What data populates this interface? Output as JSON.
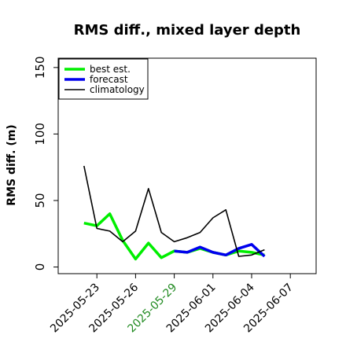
{
  "chart_data": {
    "type": "line",
    "title": "RMS diff., mixed layer depth",
    "xlabel": "",
    "ylabel": "RMS diff. (m)",
    "xlim": [
      "2025-05-20",
      "2025-06-09"
    ],
    "ylim": [
      -5,
      157
    ],
    "y_ticks": [
      0,
      50,
      100,
      150
    ],
    "x_ticks": [
      "2025-05-23",
      "2025-05-26",
      "2025-05-29",
      "2025-06-01",
      "2025-06-04",
      "2025-06-07"
    ],
    "highlight_tick": "2025-05-29",
    "highlight_color": "#228b22",
    "legend_position": "top-left",
    "grid": false,
    "series": [
      {
        "name": "best est.",
        "color": "#00ee00",
        "x": [
          "2025-05-22",
          "2025-05-23",
          "2025-05-24",
          "2025-05-25",
          "2025-05-26",
          "2025-05-27",
          "2025-05-28",
          "2025-05-29",
          "2025-05-30",
          "2025-05-31",
          "2025-06-01",
          "2025-06-02",
          "2025-06-03",
          "2025-06-04",
          "2025-06-05"
        ],
        "values": [
          33,
          31,
          40,
          20,
          6,
          18,
          7,
          12,
          11,
          14,
          11,
          9,
          12,
          11,
          9
        ]
      },
      {
        "name": "forecast",
        "color": "#0000ee",
        "x": [
          "2025-05-29",
          "2025-05-30",
          "2025-05-31",
          "2025-06-01",
          "2025-06-02",
          "2025-06-03",
          "2025-06-04",
          "2025-06-05"
        ],
        "values": [
          12,
          11,
          15,
          11,
          9,
          14,
          17,
          8
        ]
      },
      {
        "name": "climatology",
        "color": "#000000",
        "x": [
          "2025-05-22",
          "2025-05-23",
          "2025-05-24",
          "2025-05-25",
          "2025-05-26",
          "2025-05-27",
          "2025-05-28",
          "2025-05-29",
          "2025-05-30",
          "2025-05-31",
          "2025-06-01",
          "2025-06-02",
          "2025-06-03",
          "2025-06-04",
          "2025-06-05"
        ],
        "values": [
          76,
          29,
          27,
          19,
          27,
          59,
          26,
          19,
          22,
          26,
          37,
          43,
          8,
          9,
          13
        ]
      }
    ]
  }
}
